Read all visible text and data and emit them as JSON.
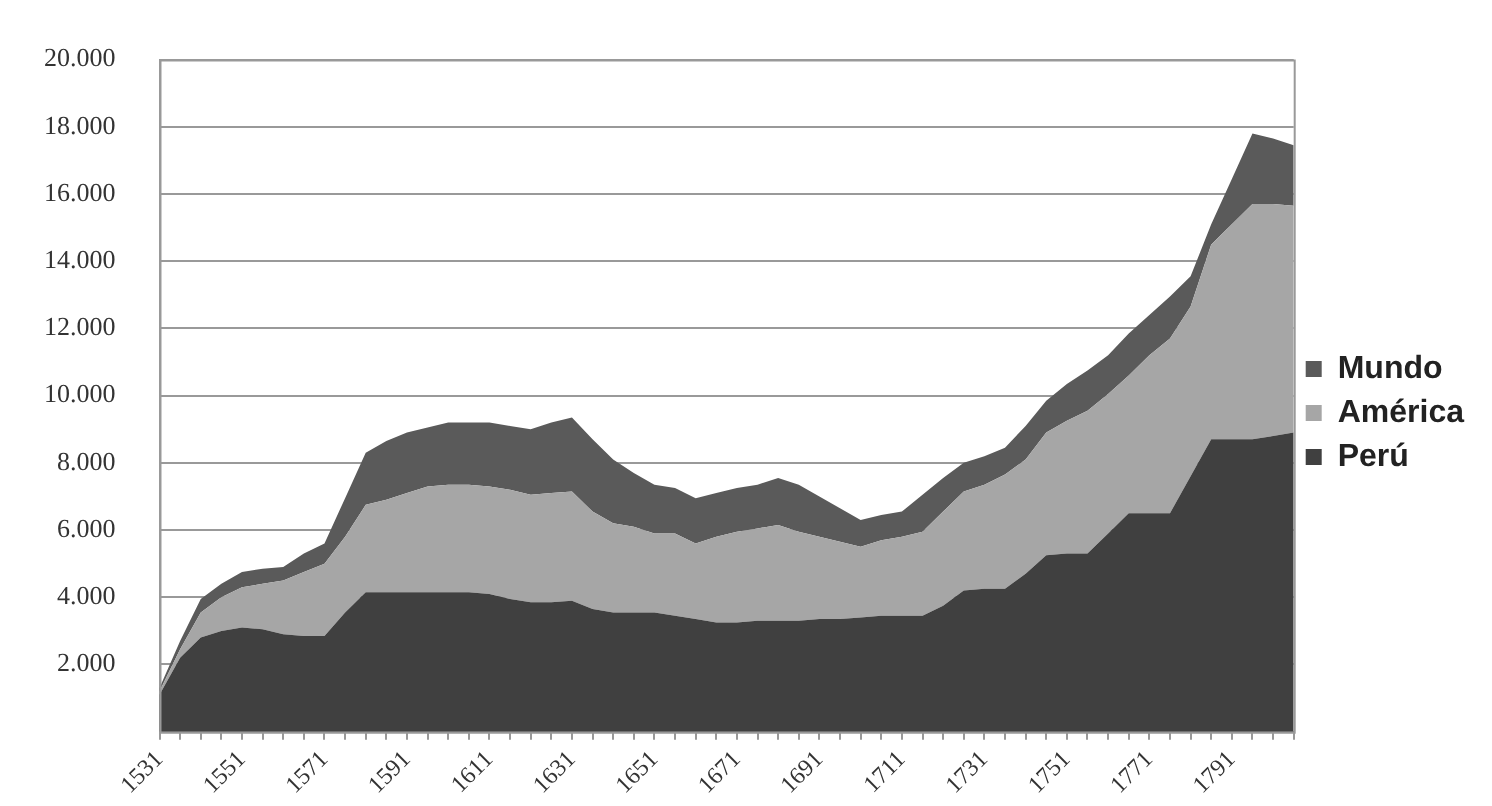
{
  "chart_data": {
    "type": "area",
    "stacked": true,
    "grid": "y",
    "legend": "right",
    "marker": "none",
    "categories": [
      "1531",
      null,
      null,
      null,
      "1551",
      null,
      null,
      null,
      "1571",
      null,
      null,
      null,
      "1591",
      null,
      null,
      null,
      "1611",
      null,
      null,
      null,
      "1631",
      null,
      null,
      null,
      "1651",
      null,
      null,
      null,
      "1671",
      null,
      null,
      null,
      "1691",
      null,
      null,
      null,
      "1711",
      null,
      null,
      null,
      "1731",
      null,
      null,
      null,
      "1751",
      null,
      null,
      null,
      "1771",
      null,
      null,
      null,
      "1791",
      null,
      null,
      null
    ],
    "ylim": [
      0,
      20000
    ],
    "yticks": [
      {
        "value": 2000,
        "label": "2.000"
      },
      {
        "value": 4000,
        "label": "4.000"
      },
      {
        "value": 6000,
        "label": "6.000"
      },
      {
        "value": 8000,
        "label": "8.000"
      },
      {
        "value": 10000,
        "label": "10.000"
      },
      {
        "value": 12000,
        "label": "12.000"
      },
      {
        "value": 14000,
        "label": "14.000"
      },
      {
        "value": 16000,
        "label": "16.000"
      },
      {
        "value": 18000,
        "label": "18.000"
      },
      {
        "value": 20000,
        "label": "20.000"
      }
    ],
    "series": [
      {
        "name": "Perú",
        "color": "#404040",
        "values": [
          1100,
          2200,
          2800,
          3000,
          3100,
          3050,
          2900,
          2850,
          2850,
          3550,
          4150,
          4150,
          4150,
          4150,
          4150,
          4150,
          4100,
          3950,
          3850,
          3850,
          3900,
          3650,
          3550,
          3550,
          3550,
          3450,
          3350,
          3250,
          3250,
          3300,
          3300,
          3300,
          3350,
          3350,
          3400,
          3450,
          3450,
          3450,
          3750,
          4200,
          4250,
          4250,
          4700,
          5250,
          5300,
          5300,
          5900,
          6500,
          6500,
          6500,
          7600,
          8700,
          8700,
          8700,
          8800,
          8900
        ]
      },
      {
        "name": "América",
        "color": "#a6a6a6",
        "values": [
          100,
          250,
          750,
          1000,
          1200,
          1350,
          1600,
          1900,
          2150,
          2250,
          2600,
          2750,
          2950,
          3150,
          3200,
          3200,
          3200,
          3250,
          3200,
          3250,
          3250,
          2900,
          2650,
          2550,
          2350,
          2450,
          2250,
          2550,
          2700,
          2750,
          2850,
          2650,
          2450,
          2300,
          2100,
          2250,
          2350,
          2500,
          2800,
          2950,
          3100,
          3400,
          3400,
          3650,
          3950,
          4250,
          4150,
          4100,
          4700,
          5200,
          5050,
          5800,
          6400,
          7000,
          6900,
          6750
        ]
      },
      {
        "name": "Mundo",
        "color": "#5a5a5a",
        "values": [
          100,
          250,
          400,
          400,
          450,
          450,
          400,
          550,
          600,
          1150,
          1550,
          1750,
          1800,
          1750,
          1850,
          1850,
          1900,
          1900,
          1950,
          2100,
          2200,
          2150,
          1900,
          1600,
          1450,
          1350,
          1350,
          1300,
          1300,
          1300,
          1400,
          1400,
          1200,
          1000,
          800,
          750,
          750,
          1100,
          1000,
          850,
          850,
          800,
          1000,
          950,
          1100,
          1200,
          1150,
          1250,
          1200,
          1250,
          900,
          600,
          1350,
          2100,
          1950,
          1800
        ]
      }
    ]
  }
}
